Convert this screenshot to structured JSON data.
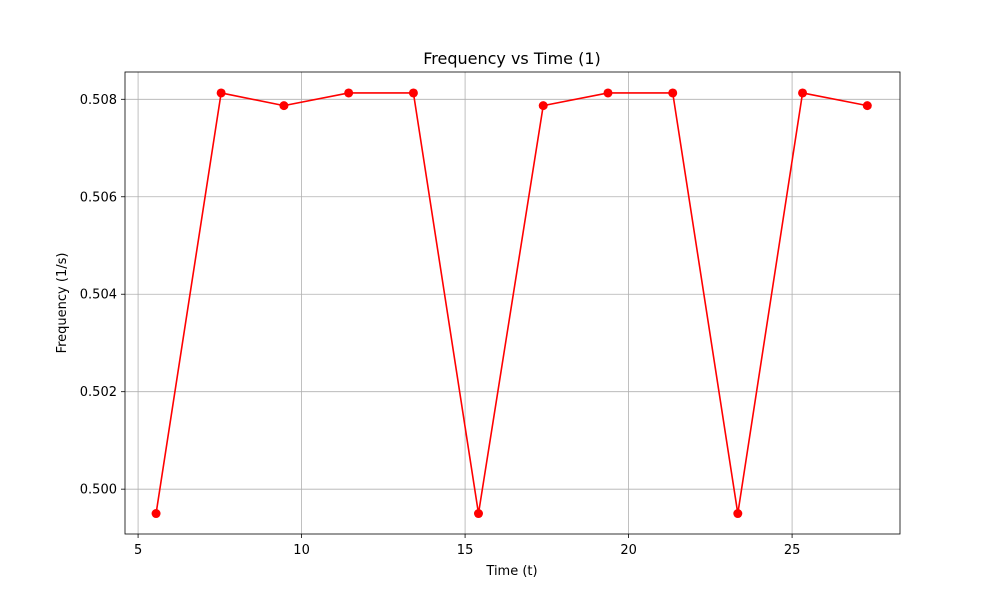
{
  "chart_data": {
    "type": "line",
    "title": "Frequency vs Time (1)",
    "xlabel": "Time (t)",
    "ylabel": "Frequency (1/s)",
    "xlim": [
      4.6,
      28.3
    ],
    "ylim": [
      0.49908,
      0.50856
    ],
    "xticks": [
      5,
      10,
      15,
      20,
      25
    ],
    "xtick_labels": [
      "5",
      "10",
      "15",
      "20",
      "25"
    ],
    "yticks": [
      0.5,
      0.502,
      0.504,
      0.506,
      0.508
    ],
    "ytick_labels": [
      "0.500",
      "0.502",
      "0.504",
      "0.506",
      "0.508"
    ],
    "grid": true,
    "series": [
      {
        "color": "#ff0000",
        "marker": "circle",
        "x": [
          5.55,
          7.54,
          9.46,
          11.44,
          13.42,
          15.41,
          17.39,
          19.37,
          21.35,
          23.34,
          25.32,
          27.3
        ],
        "y": [
          0.4995,
          0.50813,
          0.50787,
          0.50813,
          0.50813,
          0.4995,
          0.50787,
          0.50813,
          0.50813,
          0.4995,
          0.50813,
          0.50787
        ]
      }
    ]
  }
}
